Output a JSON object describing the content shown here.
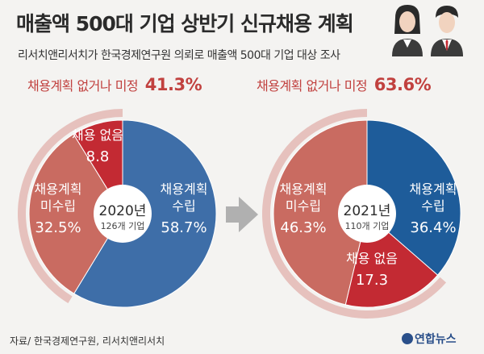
{
  "header": {
    "title": "매출액 500대 기업 상반기 신규채용 계획",
    "subtitle": "리서치앤리서치가 한국경제연구원 의뢰로 매출액 500대 기업 대상 조사"
  },
  "colors": {
    "blue": "#1e5c9a",
    "salmon": "#c96b61",
    "red": "#c32a33",
    "halo": "#e6c1bd",
    "arrow": "#b0b0b0"
  },
  "chart_data": [
    {
      "type": "pie",
      "year_label": "2020년",
      "sample_label": "126개 기업",
      "callout_label": "채용계획 없거나 미정",
      "callout_value": "41.3%",
      "slices": [
        {
          "name": "채용계획 수립",
          "value": 58.7,
          "value_label": "58.7%",
          "color": "#3e6ea8"
        },
        {
          "name": "채용계획 미수립",
          "value": 32.5,
          "value_label": "32.5%",
          "color": "#c96b61"
        },
        {
          "name": "채용 없음",
          "value": 8.8,
          "value_label": "8.8",
          "color": "#c32a33"
        }
      ]
    },
    {
      "type": "pie",
      "year_label": "2021년",
      "sample_label": "110개 기업",
      "callout_label": "채용계획 없거나 미정",
      "callout_value": "63.6%",
      "slices": [
        {
          "name": "채용계획 수립",
          "value": 36.4,
          "value_label": "36.4%",
          "color": "#1e5c9a"
        },
        {
          "name": "채용 없음",
          "value": 17.3,
          "value_label": "17.3",
          "color": "#c32a33"
        },
        {
          "name": "채용계획 미수립",
          "value": 46.3,
          "value_label": "46.3%",
          "color": "#c96b61"
        }
      ]
    }
  ],
  "footer": {
    "source": "자료/ 한국경제연구원, 리서치앤리서치",
    "logo": "연합뉴스"
  }
}
